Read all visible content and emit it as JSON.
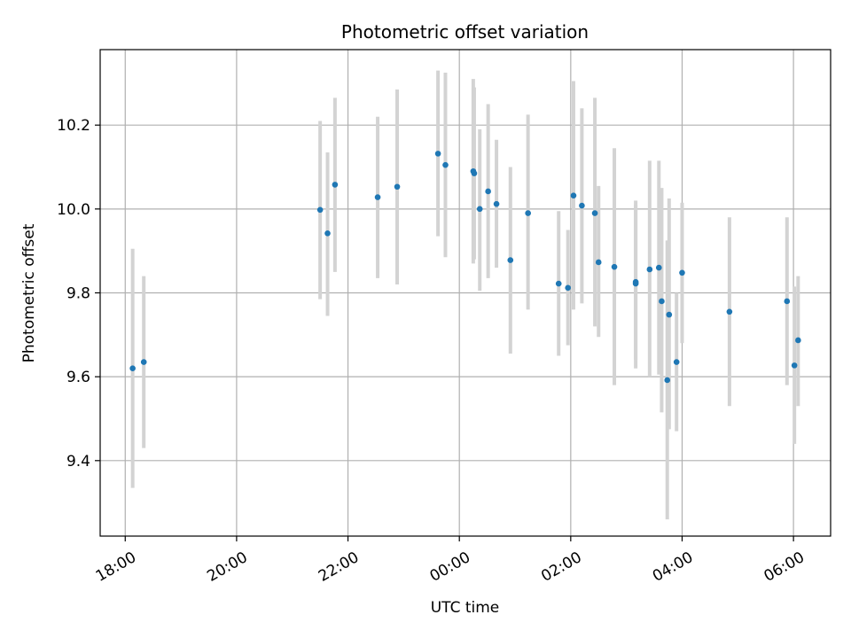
{
  "chart_data": {
    "type": "scatter",
    "title": "Photometric offset variation",
    "xlabel": "UTC time",
    "ylabel": "Photometric offset",
    "grid": true,
    "x_tick_labels": [
      "18:00",
      "20:00",
      "22:00",
      "00:00",
      "02:00",
      "04:00",
      "06:00"
    ],
    "y_tick_labels": [
      "9.4",
      "9.6",
      "9.8",
      "10.0",
      "10.2"
    ],
    "y_ticks": [
      9.4,
      9.6,
      9.8,
      10.0,
      10.2
    ],
    "xlim": [
      "17:33",
      "06:40"
    ],
    "ylim": [
      9.22,
      10.38
    ],
    "colors": {
      "point": "#1f77b4",
      "errorbar": "#d3d3d3",
      "grid": "#b0b0b0",
      "axes": "#000000"
    },
    "points": [
      {
        "x": "18:08",
        "y": 9.62,
        "err_low": 9.335,
        "err_high": 9.905
      },
      {
        "x": "18:20",
        "y": 9.635,
        "err_low": 9.43,
        "err_high": 9.84
      },
      {
        "x": "21:30",
        "y": 9.998,
        "err_low": 9.785,
        "err_high": 10.21
      },
      {
        "x": "21:38",
        "y": 9.942,
        "err_low": 9.745,
        "err_high": 10.135
      },
      {
        "x": "21:46",
        "y": 10.058,
        "err_low": 9.85,
        "err_high": 10.265
      },
      {
        "x": "22:32",
        "y": 10.028,
        "err_low": 9.835,
        "err_high": 10.22
      },
      {
        "x": "22:53",
        "y": 10.053,
        "err_low": 9.82,
        "err_high": 10.285
      },
      {
        "x": "23:37",
        "y": 10.132,
        "err_low": 9.935,
        "err_high": 10.33
      },
      {
        "x": "23:45",
        "y": 10.105,
        "err_low": 9.885,
        "err_high": 10.325
      },
      {
        "x": "00:15",
        "y": 10.09,
        "err_low": 9.87,
        "err_high": 10.31
      },
      {
        "x": "00:16",
        "y": 10.085,
        "err_low": 9.88,
        "err_high": 10.29
      },
      {
        "x": "00:22",
        "y": 10.0,
        "err_low": 9.805,
        "err_high": 10.19
      },
      {
        "x": "00:31",
        "y": 10.042,
        "err_low": 9.835,
        "err_high": 10.25
      },
      {
        "x": "00:40",
        "y": 10.012,
        "err_low": 9.86,
        "err_high": 10.165
      },
      {
        "x": "00:55",
        "y": 9.878,
        "err_low": 9.655,
        "err_high": 10.1
      },
      {
        "x": "01:14",
        "y": 9.99,
        "err_low": 9.76,
        "err_high": 10.225
      },
      {
        "x": "01:47",
        "y": 9.822,
        "err_low": 9.65,
        "err_high": 9.995
      },
      {
        "x": "01:57",
        "y": 9.812,
        "err_low": 9.675,
        "err_high": 9.95
      },
      {
        "x": "02:03",
        "y": 10.032,
        "err_low": 9.76,
        "err_high": 10.305
      },
      {
        "x": "02:12",
        "y": 10.008,
        "err_low": 9.775,
        "err_high": 10.24
      },
      {
        "x": "02:26",
        "y": 9.99,
        "err_low": 9.72,
        "err_high": 10.265
      },
      {
        "x": "02:30",
        "y": 9.873,
        "err_low": 9.695,
        "err_high": 10.055
      },
      {
        "x": "02:47",
        "y": 9.862,
        "err_low": 9.58,
        "err_high": 10.145
      },
      {
        "x": "03:10",
        "y": 9.822,
        "err_low": 9.62,
        "err_high": 10.02
      },
      {
        "x": "03:10",
        "y": 9.826,
        "err_low": 9.64,
        "err_high": 10.01
      },
      {
        "x": "03:25",
        "y": 9.856,
        "err_low": 9.6,
        "err_high": 10.115
      },
      {
        "x": "03:35",
        "y": 9.86,
        "err_low": 9.605,
        "err_high": 10.115
      },
      {
        "x": "03:38",
        "y": 9.78,
        "err_low": 9.515,
        "err_high": 10.05
      },
      {
        "x": "03:44",
        "y": 9.592,
        "err_low": 9.26,
        "err_high": 9.925
      },
      {
        "x": "03:46",
        "y": 9.748,
        "err_low": 9.475,
        "err_high": 10.025
      },
      {
        "x": "03:54",
        "y": 9.635,
        "err_low": 9.47,
        "err_high": 9.8
      },
      {
        "x": "04:00",
        "y": 9.848,
        "err_low": 9.68,
        "err_high": 10.015
      },
      {
        "x": "04:51",
        "y": 9.755,
        "err_low": 9.53,
        "err_high": 9.98
      },
      {
        "x": "05:53",
        "y": 9.78,
        "err_low": 9.58,
        "err_high": 9.98
      },
      {
        "x": "06:01",
        "y": 9.627,
        "err_low": 9.44,
        "err_high": 9.815
      },
      {
        "x": "06:05",
        "y": 9.687,
        "err_low": 9.53,
        "err_high": 9.84
      }
    ]
  }
}
